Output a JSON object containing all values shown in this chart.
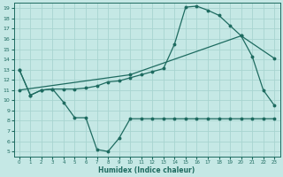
{
  "bg_color": "#c5e8e5",
  "grid_color": "#a8d4d0",
  "line_color": "#1e6b60",
  "xlabel": "Humidex (Indice chaleur)",
  "xlim": [
    -0.5,
    23.5
  ],
  "ylim": [
    4.5,
    19.5
  ],
  "xticks": [
    0,
    1,
    2,
    3,
    4,
    5,
    6,
    7,
    8,
    9,
    10,
    11,
    12,
    13,
    14,
    15,
    16,
    17,
    18,
    19,
    20,
    21,
    22,
    23
  ],
  "yticks": [
    5,
    6,
    7,
    8,
    9,
    10,
    11,
    12,
    13,
    14,
    15,
    16,
    17,
    18,
    19
  ],
  "line1_x": [
    0,
    1,
    2,
    3,
    4,
    5,
    6,
    7,
    8,
    9,
    10,
    11,
    12,
    13,
    14,
    15,
    16,
    17,
    18,
    19,
    20,
    21,
    22,
    23
  ],
  "line1_y": [
    13.0,
    10.5,
    11.0,
    11.1,
    9.8,
    8.3,
    8.3,
    5.2,
    5.0,
    6.3,
    8.2,
    8.2,
    8.2,
    8.2,
    8.2,
    8.2,
    8.2,
    8.2,
    8.2,
    8.2,
    8.2,
    8.2,
    8.2,
    8.2
  ],
  "line2_x": [
    0,
    1,
    2,
    3,
    4,
    5,
    6,
    7,
    8,
    9,
    10,
    11,
    12,
    13,
    14,
    15,
    16,
    17,
    18,
    19,
    20,
    21,
    22,
    23
  ],
  "line2_y": [
    13.0,
    10.5,
    11.0,
    11.1,
    11.1,
    11.1,
    11.2,
    11.4,
    11.8,
    11.9,
    12.2,
    12.5,
    12.8,
    13.1,
    15.5,
    19.1,
    19.2,
    18.8,
    18.3,
    17.3,
    16.3,
    14.3,
    11.0,
    9.5
  ],
  "line3_x": [
    0,
    10,
    20,
    23
  ],
  "line3_y": [
    11.0,
    12.5,
    16.3,
    14.1
  ]
}
